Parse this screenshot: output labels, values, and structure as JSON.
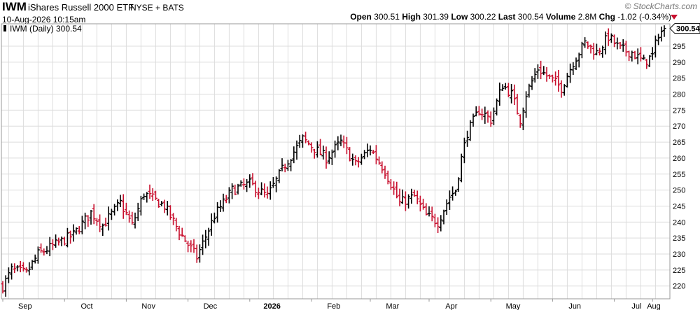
{
  "header": {
    "ticker": "IWM",
    "name": "iShares Russell 2000 ETF",
    "exchange": "NYSE + BATS",
    "timestamp": "10-Aug-2026 10:15am",
    "brand": "© StockCharts.com",
    "open_label": "Open",
    "open": "300.51",
    "high_label": "High",
    "high": "301.39",
    "low_label": "Low",
    "low": "300.22",
    "last_label": "Last",
    "last": "300.54",
    "volume_label": "Volume",
    "volume": "2.8M",
    "chg_label": "Chg",
    "chg": "-1.02 (-0.34%)",
    "legend": "IWM (Daily) 300.54",
    "last_price_tag": "300.54"
  },
  "colors": {
    "up": "#000000",
    "down": "#c8102e",
    "grid": "#dcdcdc",
    "axis": "#999999"
  },
  "chart_data": {
    "type": "ohlc",
    "ylim": [
      216,
      302
    ],
    "yticks": [
      220,
      225,
      230,
      235,
      240,
      245,
      250,
      255,
      260,
      265,
      270,
      275,
      280,
      285,
      290,
      295
    ],
    "months": [
      {
        "label": "Sep",
        "bold": false
      },
      {
        "label": "Oct",
        "bold": false
      },
      {
        "label": "Nov",
        "bold": false
      },
      {
        "label": "Dec",
        "bold": false
      },
      {
        "label": "2026",
        "bold": true
      },
      {
        "label": "Feb",
        "bold": false
      },
      {
        "label": "Mar",
        "bold": false
      },
      {
        "label": "Apr",
        "bold": false
      },
      {
        "label": "May",
        "bold": false
      },
      {
        "label": "Jun",
        "bold": false
      },
      {
        "label": "Jul",
        "bold": false
      },
      {
        "label": "Aug",
        "bold": false
      }
    ],
    "anchors": [
      [
        0,
        220
      ],
      [
        3,
        225
      ],
      [
        8,
        224
      ],
      [
        12,
        230
      ],
      [
        18,
        233
      ],
      [
        24,
        236
      ],
      [
        30,
        243
      ],
      [
        34,
        239
      ],
      [
        40,
        246
      ],
      [
        44,
        239
      ],
      [
        48,
        249
      ],
      [
        55,
        245
      ],
      [
        60,
        237
      ],
      [
        66,
        229
      ],
      [
        72,
        242
      ],
      [
        78,
        250
      ],
      [
        84,
        252
      ],
      [
        90,
        248
      ],
      [
        96,
        258
      ],
      [
        102,
        266
      ],
      [
        106,
        263
      ],
      [
        110,
        260
      ],
      [
        115,
        265
      ],
      [
        120,
        258
      ],
      [
        125,
        263
      ],
      [
        130,
        256
      ],
      [
        135,
        246
      ],
      [
        140,
        248
      ],
      [
        144,
        242
      ],
      [
        148,
        240
      ],
      [
        152,
        248
      ],
      [
        154,
        250
      ],
      [
        156,
        260
      ],
      [
        158,
        268
      ],
      [
        162,
        275
      ],
      [
        166,
        272
      ],
      [
        170,
        283
      ],
      [
        173,
        280
      ],
      [
        176,
        272
      ],
      [
        178,
        280
      ],
      [
        182,
        288
      ],
      [
        186,
        285
      ],
      [
        190,
        282
      ],
      [
        194,
        290
      ],
      [
        198,
        296
      ],
      [
        202,
        293
      ],
      [
        206,
        298
      ],
      [
        210,
        294
      ],
      [
        214,
        293
      ],
      [
        218,
        290
      ],
      [
        221,
        292
      ],
      [
        223,
        299
      ],
      [
        225,
        300
      ]
    ],
    "last": 300.54
  }
}
